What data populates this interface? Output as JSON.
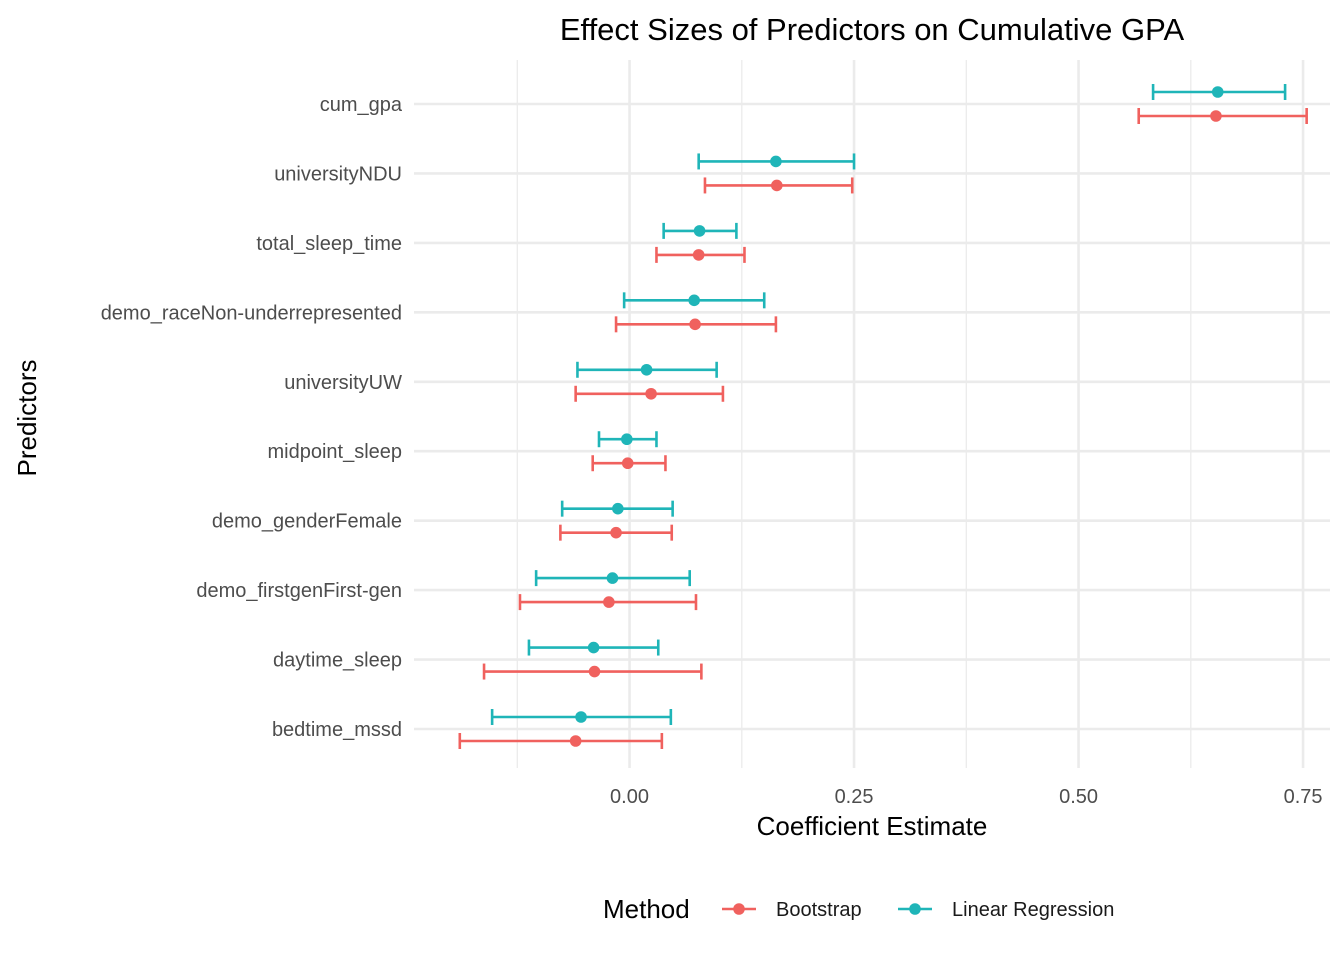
{
  "chart_data": {
    "type": "scatter",
    "subtype": "coefficient-plot-with-error-bars",
    "title": "Effect Sizes of Predictors on Cumulative GPA",
    "xlabel": "Coefficient Estimate",
    "ylabel": "Predictors",
    "xlim": [
      -0.24,
      0.78
    ],
    "x_ticks": [
      0.0,
      0.25,
      0.5,
      0.75
    ],
    "x_tick_labels": [
      "0.00",
      "0.25",
      "0.50",
      "0.75"
    ],
    "grid": true,
    "legend": {
      "title": "Method",
      "position": "bottom",
      "entries": [
        "Bootstrap",
        "Linear Regression"
      ]
    },
    "categories": [
      "cum_gpa",
      "universityNDU",
      "total_sleep_time",
      "demo_raceNon-underrepresented",
      "universityUW",
      "midpoint_sleep",
      "demo_genderFemale",
      "demo_firstgenFirst-gen",
      "daytime_sleep",
      "bedtime_mssd"
    ],
    "series": [
      {
        "name": "Linear Regression",
        "color": "#1fb5b8",
        "estimate": [
          0.655,
          0.163,
          0.078,
          0.072,
          0.019,
          -0.003,
          -0.013,
          -0.019,
          -0.04,
          -0.054
        ],
        "lower": [
          0.583,
          0.077,
          0.038,
          -0.006,
          -0.058,
          -0.034,
          -0.075,
          -0.104,
          -0.112,
          -0.153
        ],
        "upper": [
          0.73,
          0.25,
          0.119,
          0.15,
          0.097,
          0.03,
          0.048,
          0.067,
          0.032,
          0.046
        ]
      },
      {
        "name": "Bootstrap",
        "color": "#f0615e",
        "estimate": [
          0.653,
          0.164,
          0.077,
          0.073,
          0.024,
          -0.002,
          -0.015,
          -0.023,
          -0.039,
          -0.06
        ],
        "lower": [
          0.567,
          0.084,
          0.03,
          -0.015,
          -0.06,
          -0.041,
          -0.077,
          -0.122,
          -0.162,
          -0.189
        ],
        "upper": [
          0.754,
          0.248,
          0.128,
          0.163,
          0.104,
          0.04,
          0.047,
          0.074,
          0.08,
          0.036
        ]
      }
    ]
  }
}
